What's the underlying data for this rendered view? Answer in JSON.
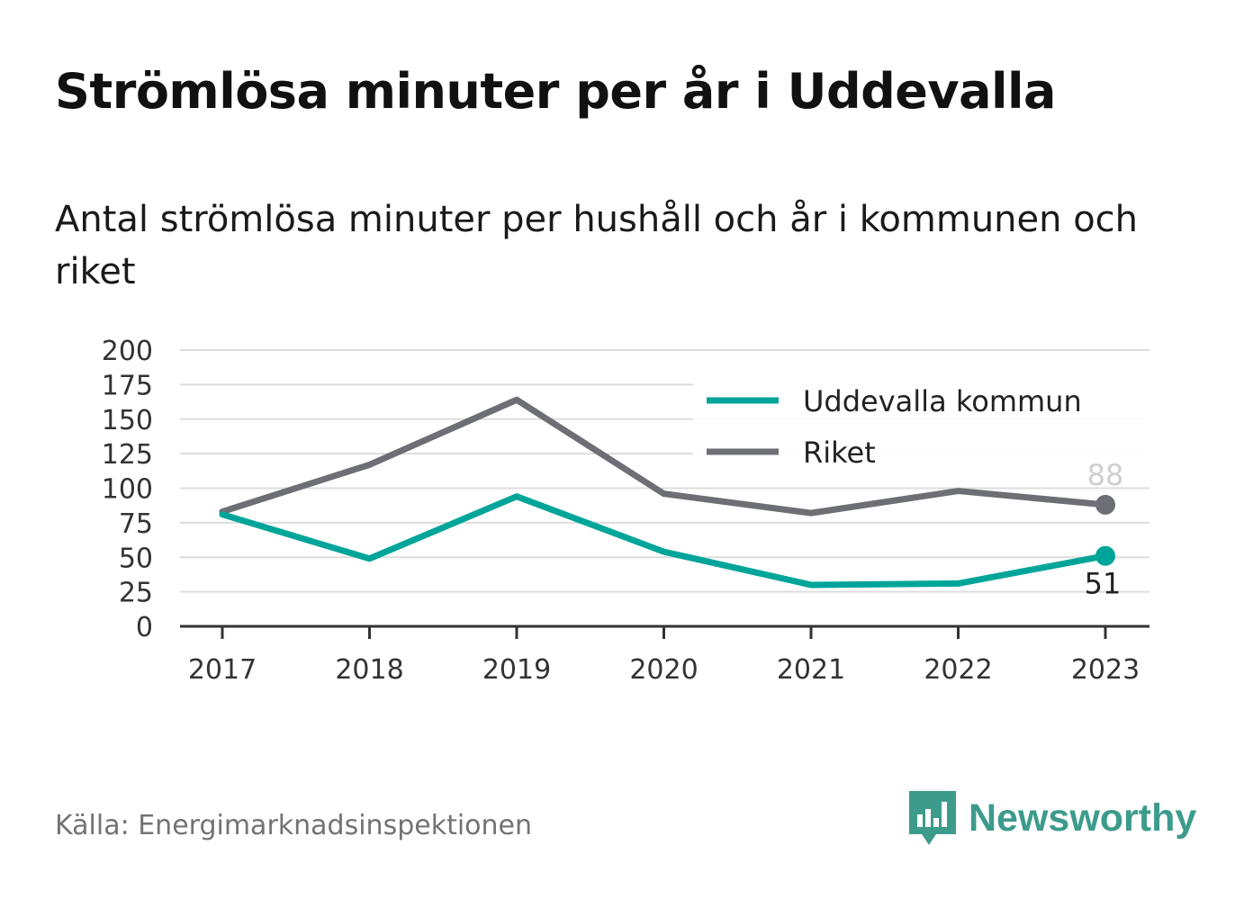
{
  "chart_data": {
    "type": "line",
    "title": "Strömlösa minuter per år i Uddevalla",
    "subtitle": "Antal strömlösa minuter per hushåll och år i kommunen och riket",
    "x": [
      "2017",
      "2018",
      "2019",
      "2020",
      "2021",
      "2022",
      "2023"
    ],
    "ylim": [
      0,
      200
    ],
    "yticks": [
      0,
      25,
      50,
      75,
      100,
      125,
      150,
      175,
      200
    ],
    "grid": true,
    "legend_position": "top-right",
    "series": [
      {
        "name": "Uddevalla kommun",
        "color": "#00a599",
        "values": [
          81,
          49,
          94,
          54,
          30,
          31,
          51
        ],
        "end_label": "51"
      },
      {
        "name": "Riket",
        "color": "#6e6e75",
        "values": [
          83,
          117,
          164,
          96,
          82,
          98,
          88
        ],
        "end_label": "88"
      }
    ]
  },
  "source": "Källa: Energimarknadsinspektionen",
  "logo": {
    "text": "Newsworthy",
    "color": "#3d9b8c"
  }
}
